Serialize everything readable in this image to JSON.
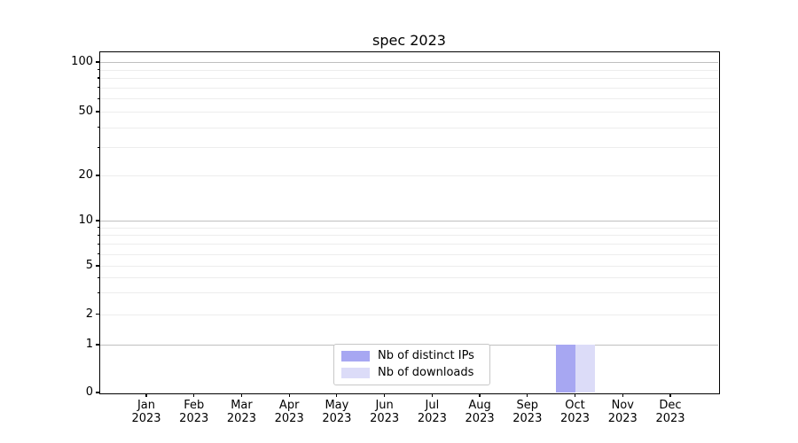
{
  "title": "spec 2023",
  "chart_data": {
    "type": "bar",
    "title": "spec 2023",
    "months": [
      "Jan",
      "Feb",
      "Mar",
      "Apr",
      "May",
      "Jun",
      "Jul",
      "Aug",
      "Sep",
      "Oct",
      "Nov",
      "Dec"
    ],
    "year": "2023",
    "categories": [
      "Jan 2023",
      "Feb 2023",
      "Mar 2023",
      "Apr 2023",
      "May 2023",
      "Jun 2023",
      "Jul 2023",
      "Aug 2023",
      "Sep 2023",
      "Oct 2023",
      "Nov 2023",
      "Dec 2023"
    ],
    "series": [
      {
        "name": "Nb of distinct IPs",
        "color": "#a7a7f2",
        "values": [
          0,
          0,
          0,
          0,
          0,
          0,
          0,
          0,
          0,
          1,
          0,
          0
        ]
      },
      {
        "name": "Nb of downloads",
        "color": "#dcdcf8",
        "values": [
          0,
          0,
          0,
          0,
          0,
          0,
          0,
          0,
          0,
          1,
          0,
          0
        ]
      }
    ],
    "y_axis": {
      "scale": "log-like (0 baseline, labeled 1,2,5,10,20,50,100)",
      "labeled_ticks": [
        100,
        50,
        20,
        10,
        5,
        2,
        1,
        0
      ],
      "minor_ticks": [
        2,
        3,
        4,
        5,
        6,
        7,
        8,
        9,
        20,
        30,
        40,
        50,
        60,
        70,
        80,
        90
      ],
      "decade_lines": [
        1,
        10,
        100
      ],
      "ylim": [
        0,
        115
      ],
      "grid_major_color": "#bfbfbf",
      "grid_minor_color": "#ededed"
    },
    "x_axis": {
      "label_line2": "2023"
    },
    "legend": {
      "position": "lower center",
      "entries": [
        "Nb of distinct IPs",
        "Nb of downloads"
      ]
    }
  }
}
